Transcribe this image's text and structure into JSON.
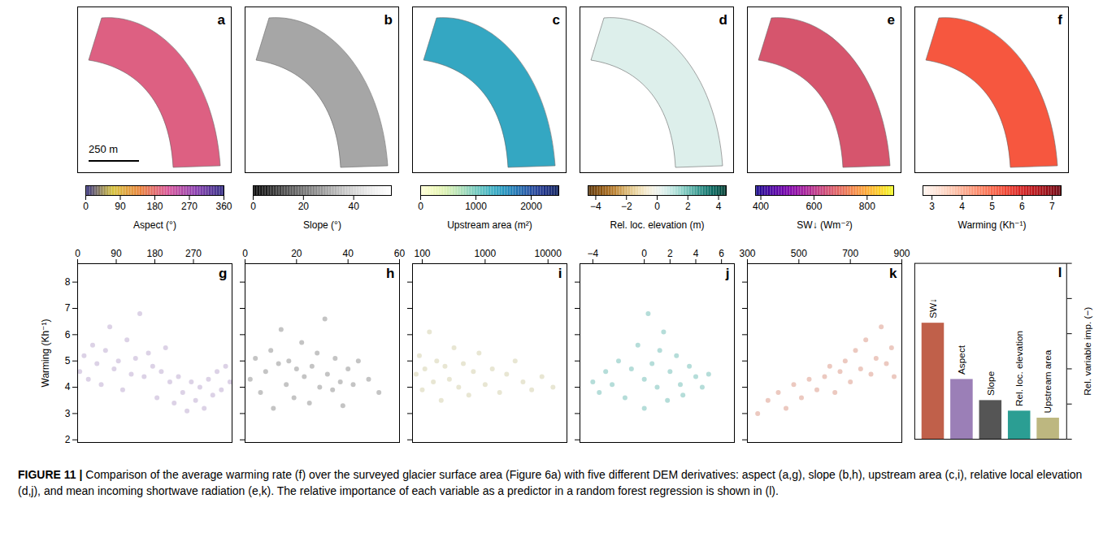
{
  "chart_data": [
    {
      "type": "map",
      "panel": "a",
      "annotations": [
        "250 m"
      ],
      "colorbar": {
        "label": "Aspect (°)",
        "lim": [
          0,
          360
        ],
        "ticks": [
          0,
          90,
          180,
          270,
          360
        ]
      }
    },
    {
      "type": "map",
      "panel": "b",
      "colorbar": {
        "label": "Slope (°)",
        "lim": [
          0,
          55
        ],
        "ticks": [
          0,
          20,
          40
        ]
      }
    },
    {
      "type": "map",
      "panel": "c",
      "colorbar": {
        "label": "Upstream area (m²)",
        "lim": [
          0,
          2500
        ],
        "ticks": [
          0,
          1000,
          2000
        ]
      }
    },
    {
      "type": "map",
      "panel": "d",
      "colorbar": {
        "label": "Rel. loc. elevation (m)",
        "lim": [
          -4.5,
          4.5
        ],
        "ticks": [
          {
            "value": -4,
            "label": "−4"
          },
          {
            "value": -2,
            "label": "−2"
          },
          0,
          2,
          4
        ]
      }
    },
    {
      "type": "map",
      "panel": "e",
      "colorbar": {
        "label": "SW↓ (Wm⁻²)",
        "lim": [
          380,
          900
        ],
        "ticks": [
          400,
          600,
          800
        ]
      }
    },
    {
      "type": "map",
      "panel": "f",
      "colorbar": {
        "label": "Warming (Kh⁻¹)",
        "lim": [
          2.7,
          7.3
        ],
        "ticks": [
          3,
          4,
          5,
          6,
          7
        ]
      }
    },
    {
      "type": "scatter",
      "panel": "g",
      "ylabel": "Warming (Kh⁻¹)",
      "color": "#9b7fb7",
      "xlim": [
        0,
        360
      ],
      "xticks": [
        0,
        90,
        180,
        270
      ],
      "ylim": [
        1.9,
        8.7
      ],
      "yticks": [
        2,
        3,
        4,
        5,
        6,
        7,
        8
      ],
      "x": [
        5,
        15,
        25,
        35,
        45,
        55,
        65,
        75,
        85,
        95,
        105,
        115,
        125,
        135,
        145,
        155,
        165,
        175,
        185,
        195,
        205,
        215,
        225,
        235,
        245,
        255,
        265,
        275,
        285,
        295,
        305,
        315,
        325,
        335,
        345,
        355
      ],
      "values": [
        4.6,
        5.2,
        4.3,
        5.6,
        4.9,
        4.1,
        5.4,
        6.3,
        4.7,
        5.0,
        3.9,
        5.8,
        4.5,
        5.1,
        6.8,
        4.4,
        5.3,
        4.8,
        3.6,
        4.6,
        5.5,
        4.2,
        3.4,
        4.4,
        3.8,
        3.1,
        4.2,
        3.5,
        4.0,
        3.2,
        4.3,
        3.7,
        4.6,
        3.9,
        4.8,
        4.2
      ]
    },
    {
      "type": "scatter",
      "panel": "h",
      "tick_labels": "x",
      "color": "#555555",
      "xlim": [
        0,
        60
      ],
      "xticks": [
        0,
        20,
        40,
        60
      ],
      "ylim": [
        1.9,
        8.7
      ],
      "yticks": [
        2,
        3,
        4,
        5,
        6,
        7,
        8
      ],
      "x": [
        2,
        4,
        6,
        8,
        10,
        11,
        13,
        14,
        16,
        17,
        19,
        20,
        22,
        23,
        25,
        26,
        28,
        29,
        31,
        32,
        34,
        35,
        37,
        38,
        40,
        42,
        44,
        48,
        52
      ],
      "values": [
        4.3,
        5.1,
        3.8,
        4.6,
        5.4,
        3.2,
        4.9,
        6.2,
        4.1,
        5.0,
        3.6,
        4.7,
        5.7,
        4.4,
        3.4,
        4.8,
        5.3,
        4.0,
        6.6,
        4.5,
        3.9,
        5.1,
        4.2,
        3.3,
        4.7,
        4.1,
        5.0,
        4.3,
        3.8
      ]
    },
    {
      "type": "scatter",
      "panel": "i",
      "tick_labels": "x",
      "log": "x",
      "color": "#bdb780",
      "xlim": [
        70,
        20000
      ],
      "xticks": [
        100,
        1000,
        10000
      ],
      "ylim": [
        1.9,
        8.7
      ],
      "yticks": [
        2,
        3,
        4,
        5,
        6,
        7,
        8
      ],
      "x": [
        80,
        90,
        100,
        110,
        130,
        150,
        170,
        200,
        230,
        270,
        320,
        380,
        450,
        550,
        650,
        800,
        1000,
        1300,
        1700,
        2200,
        3000,
        4000,
        5500,
        8000,
        12000
      ],
      "values": [
        4.5,
        5.2,
        3.9,
        4.7,
        6.1,
        4.2,
        5.0,
        3.5,
        4.8,
        4.3,
        5.5,
        4.0,
        4.9,
        3.7,
        4.6,
        5.3,
        4.1,
        4.7,
        3.8,
        4.5,
        5.0,
        4.2,
        3.9,
        4.4,
        4.0
      ]
    },
    {
      "type": "scatter",
      "panel": "j",
      "tick_labels": "x",
      "color": "#2b9e93",
      "xlim": [
        -5,
        7
      ],
      "xticks": [
        {
          "value": -4,
          "label": "−4"
        },
        0,
        2,
        4,
        6
      ],
      "ylim": [
        1.9,
        8.7
      ],
      "yticks": [
        2,
        3,
        4,
        5,
        6,
        7,
        8
      ],
      "x": [
        -4,
        -3.5,
        -3,
        -2.5,
        -2,
        -1.5,
        -1,
        -0.5,
        0,
        0,
        0.3,
        0.6,
        1,
        1.2,
        1.5,
        1.8,
        2,
        2.5,
        2.8,
        3,
        3.5,
        4,
        4.5,
        5
      ],
      "values": [
        4.2,
        3.8,
        4.6,
        4.1,
        5.0,
        3.6,
        4.7,
        5.6,
        4.3,
        3.2,
        6.8,
        4.9,
        4.0,
        5.4,
        6.1,
        3.5,
        4.6,
        5.2,
        4.1,
        3.7,
        4.8,
        4.4,
        4.0,
        4.5
      ]
    },
    {
      "type": "scatter",
      "panel": "k",
      "tick_labels": "x",
      "color": "#c9654a",
      "xlim": [
        300,
        900
      ],
      "xticks": [
        300,
        500,
        700,
        900
      ],
      "ylim": [
        1.9,
        8.7
      ],
      "yticks": [
        2,
        3,
        4,
        5,
        6,
        7,
        8
      ],
      "x": [
        340,
        380,
        420,
        450,
        480,
        510,
        540,
        570,
        600,
        620,
        640,
        660,
        680,
        700,
        720,
        740,
        760,
        780,
        800,
        820,
        840,
        860,
        870
      ],
      "values": [
        3.0,
        3.5,
        3.8,
        3.2,
        4.1,
        3.6,
        4.3,
        3.9,
        4.4,
        4.8,
        3.8,
        4.6,
        5.0,
        4.2,
        5.4,
        4.7,
        5.8,
        4.5,
        5.1,
        6.3,
        4.9,
        5.5,
        4.4
      ]
    },
    {
      "type": "bar",
      "panel": "l",
      "ylabel": "Rel. variable imp. (−)",
      "tick_labels": false,
      "categories": [
        "SW↓",
        "Aspect",
        "Slope",
        "Rel. loc. elevation",
        "Upstream area"
      ],
      "values": [
        0.33,
        0.17,
        0.11,
        0.08,
        0.06
      ],
      "colors": [
        "#c0604a",
        "#9b7fb7",
        "#555555",
        "#2b9e93",
        "#bdb780"
      ],
      "ylim": [
        0,
        0.5
      ],
      "yticks": [
        0,
        0.1,
        0.2,
        0.3,
        0.4,
        0.5
      ]
    }
  ],
  "caption": {
    "label": "FIGURE 11 |",
    "text": "Comparison of the average warming rate (f) over the surveyed glacier surface area (Figure 6a) with five different DEM derivatives: aspect (a,g), slope (b,h), upstream area (c,i), relative local elevation (d,j), and mean incoming shortwave radiation (e,k). The relative importance of each variable as a predictor in a random forest regression is shown in (l)."
  }
}
